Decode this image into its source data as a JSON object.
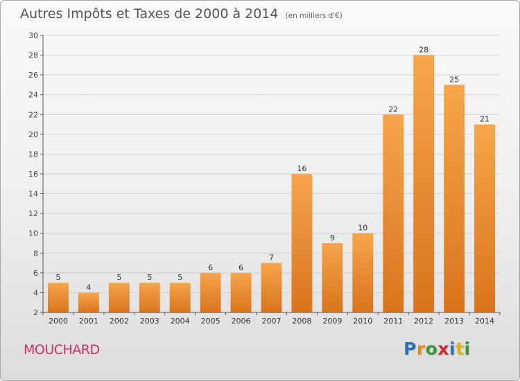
{
  "title": "Autres Impôts et Taxes de 2000 à 2014",
  "subtitle": "(en milliers d'€)",
  "commune": "MOUCHARD",
  "logo": {
    "letters": [
      {
        "char": "P",
        "color": "#2f6fb5"
      },
      {
        "char": "r",
        "color": "#e38b1f"
      },
      {
        "char": "o",
        "color": "#3a9a3a"
      },
      {
        "char": "x",
        "color": "#d5262f"
      },
      {
        "char": "i",
        "color": "#2f6fb5"
      },
      {
        "char": "t",
        "color": "#e0b51c"
      },
      {
        "char": "i",
        "color": "#3a9a3a"
      }
    ]
  },
  "colors": {
    "bar_top": "#f7a54b",
    "bar_bottom": "#d8741c",
    "grid": "#d0d0d0",
    "axis": "#555555"
  },
  "chart_data": {
    "type": "bar",
    "title": "Autres Impôts et Taxes de 2000 à 2014",
    "subtitle": "(en milliers d'€)",
    "xlabel": "",
    "ylabel": "",
    "categories": [
      "2000",
      "2001",
      "2002",
      "2003",
      "2004",
      "2005",
      "2006",
      "2007",
      "2008",
      "2009",
      "2010",
      "2011",
      "2012",
      "2013",
      "2014"
    ],
    "values": [
      5,
      4,
      5,
      5,
      5,
      6,
      6,
      7,
      16,
      9,
      10,
      22,
      28,
      25,
      21
    ],
    "ylim": [
      2,
      30
    ],
    "yticks": [
      2,
      4,
      6,
      8,
      10,
      12,
      14,
      16,
      18,
      20,
      22,
      24,
      26,
      28,
      30
    ],
    "grid": true,
    "data_labels": true
  }
}
